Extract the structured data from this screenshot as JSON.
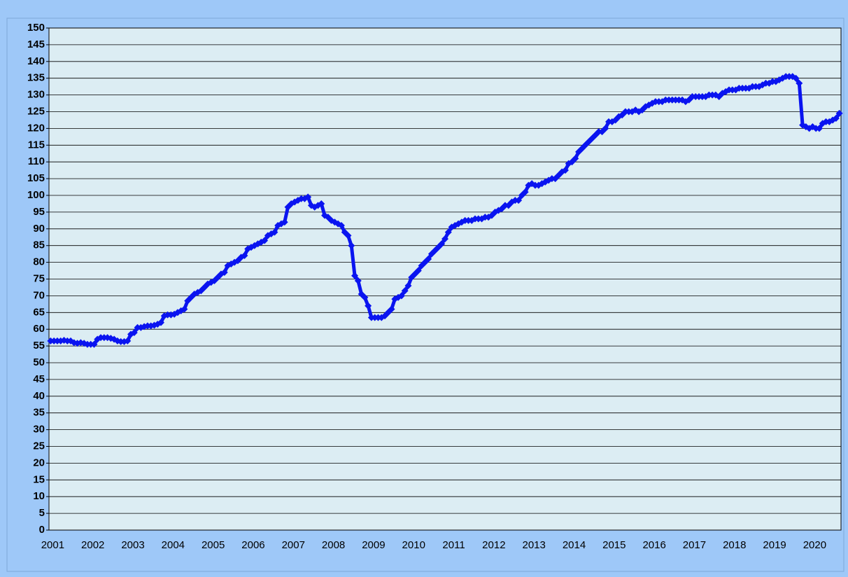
{
  "chart_data": {
    "type": "line",
    "categories": [
      "2001",
      null,
      null,
      null,
      null,
      null,
      null,
      null,
      null,
      null,
      null,
      null,
      "2002",
      null,
      null,
      null,
      null,
      null,
      null,
      null,
      null,
      null,
      null,
      null,
      "2003",
      null,
      null,
      null,
      null,
      null,
      null,
      null,
      null,
      null,
      null,
      null,
      "2004",
      null,
      null,
      null,
      null,
      null,
      null,
      null,
      null,
      null,
      null,
      null,
      "2005",
      null,
      null,
      null,
      null,
      null,
      null,
      null,
      null,
      null,
      null,
      null,
      "2006",
      null,
      null,
      null,
      null,
      null,
      null,
      null,
      null,
      null,
      null,
      null,
      "2007",
      null,
      null,
      null,
      null,
      null,
      null,
      null,
      null,
      null,
      null,
      null,
      "2008",
      null,
      null,
      null,
      null,
      null,
      null,
      null,
      null,
      null,
      null,
      null,
      "2009",
      null,
      null,
      null,
      null,
      null,
      null,
      null,
      null,
      null,
      null,
      null,
      "2010",
      null,
      null,
      null,
      null,
      null,
      null,
      null,
      null,
      null,
      null,
      null,
      "2011",
      null,
      null,
      null,
      null,
      null,
      null,
      null,
      null,
      null,
      null,
      null,
      "2012",
      null,
      null,
      null,
      null,
      null,
      null,
      null,
      null,
      null,
      null,
      null,
      "2013",
      null,
      null,
      null,
      null,
      null,
      null,
      null,
      null,
      null,
      null,
      null,
      "2014",
      null,
      null,
      null,
      null,
      null,
      null,
      null,
      null,
      null,
      null,
      null,
      "2015",
      null,
      null,
      null,
      null,
      null,
      null,
      null,
      null,
      null,
      null,
      null,
      "2016",
      null,
      null,
      null,
      null,
      null,
      null,
      null,
      null,
      null,
      null,
      null,
      "2017",
      null,
      null,
      null,
      null,
      null,
      null,
      null,
      null,
      null,
      null,
      null,
      "2018",
      null,
      null,
      null,
      null,
      null,
      null,
      null,
      null,
      null,
      null,
      null,
      "2019",
      null,
      null,
      null,
      null,
      null,
      null,
      null,
      null,
      null,
      null,
      null,
      "2020",
      null,
      null,
      null,
      null,
      null,
      null,
      null,
      null
    ],
    "series": [
      {
        "color": "#0a14f0",
        "values": [
          56.5,
          56.5,
          56.5,
          56.5,
          56.7,
          56.5,
          56.5,
          56,
          55.8,
          56,
          55.8,
          55.5,
          55.5,
          55.5,
          57,
          57.5,
          57.5,
          57.5,
          57.3,
          57,
          56.5,
          56.3,
          56.3,
          56.5,
          58.5,
          59,
          60.5,
          60.5,
          60.8,
          61,
          61,
          61.2,
          61.5,
          62,
          64,
          64.3,
          64.3,
          64.5,
          65,
          65.5,
          66,
          68.5,
          69.5,
          70.5,
          71,
          71.5,
          72.5,
          73.5,
          74,
          74.5,
          75.5,
          76.5,
          77,
          79,
          79.5,
          80,
          80.5,
          81.5,
          82,
          84,
          84.5,
          85,
          85.5,
          86,
          86.5,
          88,
          88.5,
          89,
          91,
          91.5,
          92,
          96.5,
          97.5,
          98,
          98.5,
          99,
          99,
          99.5,
          97,
          96.5,
          97,
          97.5,
          94,
          93.5,
          92.5,
          92,
          91.5,
          91,
          89,
          88,
          85,
          76,
          74.5,
          70.5,
          69.5,
          67,
          63.5,
          63.5,
          63.5,
          63.5,
          64,
          65,
          66,
          69,
          69.5,
          70,
          71.5,
          73,
          75.5,
          76.5,
          77.5,
          79,
          80,
          81,
          82.5,
          83.5,
          84.5,
          85.5,
          87,
          89,
          90.5,
          91,
          91.5,
          92,
          92.5,
          92.5,
          92.5,
          93,
          93,
          93,
          93.5,
          93.5,
          94,
          95,
          95.5,
          96,
          97,
          97,
          98,
          98.5,
          98.5,
          100,
          101,
          103,
          103.5,
          103,
          103,
          103.5,
          104,
          104.5,
          105,
          105,
          106,
          107,
          107.5,
          109.5,
          110,
          111,
          113,
          114,
          115,
          116,
          117,
          118,
          119,
          119,
          120,
          122,
          122,
          122.5,
          123.5,
          124,
          125,
          125,
          125,
          125.5,
          125,
          125.5,
          126.5,
          127,
          127.5,
          128,
          128,
          128,
          128.5,
          128.5,
          128.5,
          128.5,
          128.5,
          128.5,
          128,
          128.5,
          129.5,
          129.5,
          129.5,
          129.5,
          129.5,
          130,
          130,
          130,
          129.5,
          130.5,
          131,
          131.5,
          131.5,
          131.5,
          132,
          132,
          132,
          132,
          132.5,
          132.5,
          132.5,
          133,
          133.5,
          133.5,
          134,
          134,
          134.5,
          135,
          135.5,
          135.5,
          135.5,
          135,
          133.5,
          121,
          120.5,
          120,
          120.5,
          120,
          120,
          121.5,
          122,
          122,
          122.5,
          123,
          124.5
        ]
      }
    ],
    "ylim": [
      0,
      150
    ],
    "yticks": [
      0,
      5,
      10,
      15,
      20,
      25,
      30,
      35,
      40,
      45,
      50,
      55,
      60,
      65,
      70,
      75,
      80,
      85,
      90,
      95,
      100,
      105,
      110,
      115,
      120,
      125,
      130,
      135,
      140,
      145,
      150
    ],
    "grid": true
  }
}
